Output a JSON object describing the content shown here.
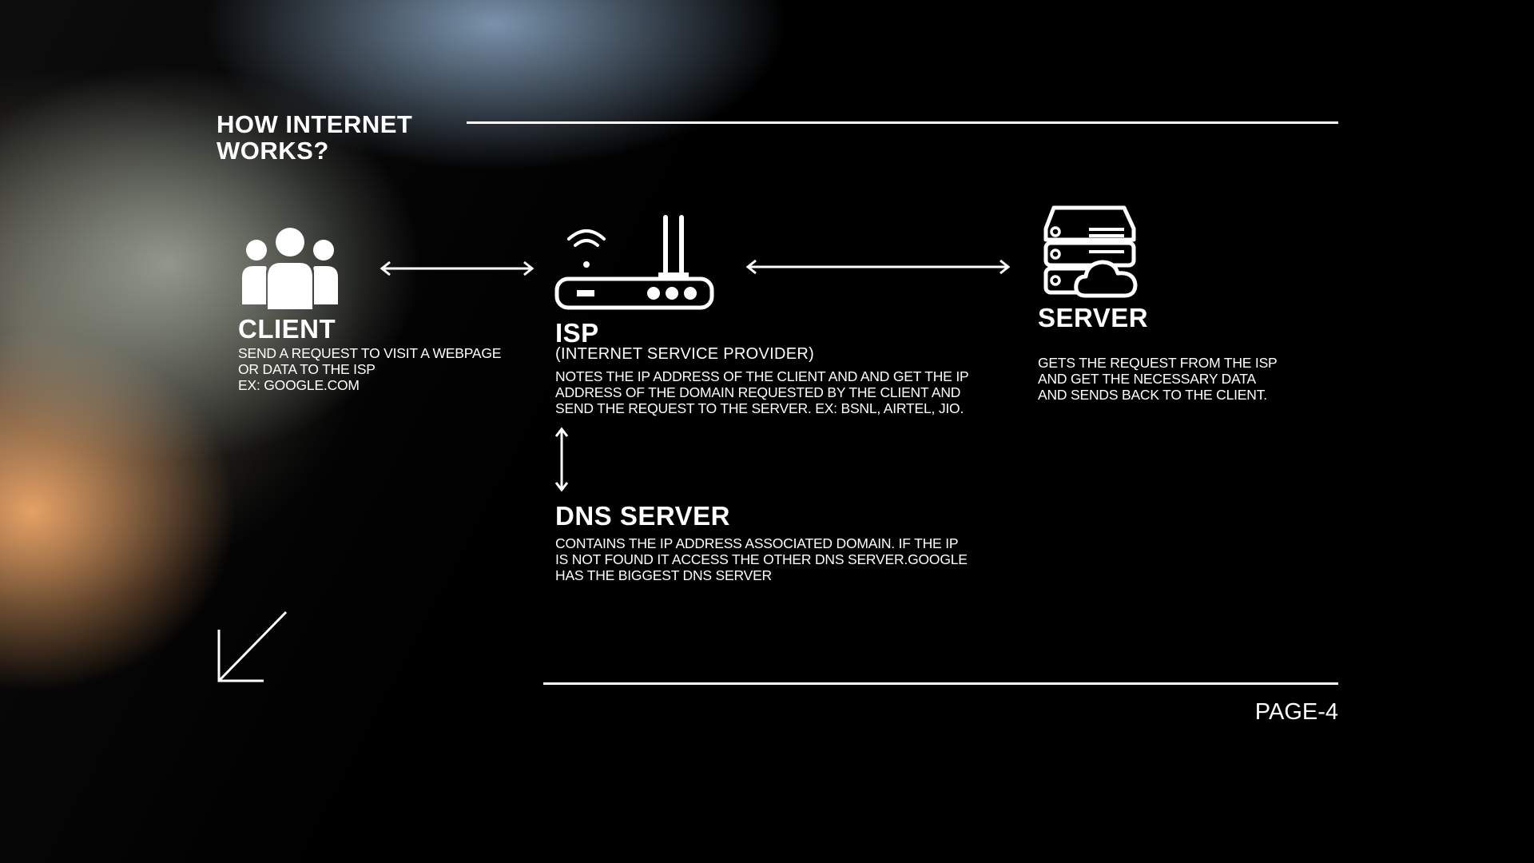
{
  "title": "HOW INTERNET WORKS?",
  "client": {
    "heading": "CLIENT",
    "body": "SEND A REQUEST TO VISIT A WEBPAGE\nOR DATA TO THE ISP\nEX: GOOGLE.COM"
  },
  "isp": {
    "heading": "ISP",
    "subtitle": "(INTERNET SERVICE PROVIDER)",
    "body": "NOTES THE IP ADDRESS OF THE CLIENT AND AND GET THE IP\nADDRESS OF THE DOMAIN REQUESTED BY THE CLIENT AND\nSEND THE REQUEST TO THE SERVER. EX: BSNL, AIRTEL, JIO."
  },
  "server": {
    "heading": "SERVER",
    "body": "GETS THE REQUEST FROM THE ISP\nAND GET THE NECESSARY DATA\nAND SENDS BACK TO THE CLIENT."
  },
  "dns": {
    "heading": "DNS SERVER",
    "body": "CONTAINS THE IP ADDRESS ASSOCIATED DOMAIN. IF THE IP\nIS NOT FOUND IT ACCESS THE OTHER DNS SERVER.GOOGLE\nHAS THE BIGGEST DNS SERVER"
  },
  "page_label": "PAGE-4",
  "icons": {
    "client": "users-icon",
    "isp": "router-icon",
    "server": "cloud-server-icon",
    "decor": "arrow-down-left-icon"
  }
}
